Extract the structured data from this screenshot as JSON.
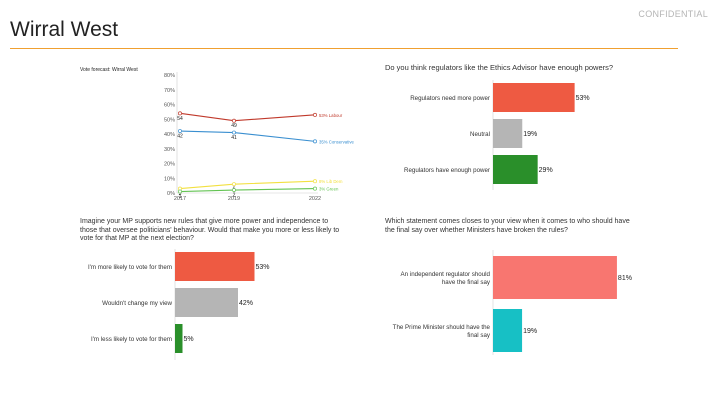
{
  "header": {
    "title": "Wirral West",
    "confidential": "CONFIDENTIAL",
    "accent": "#f0a030"
  },
  "chart_data": [
    {
      "type": "line",
      "title": "Vote forecast: Wirral West",
      "x": [
        2017,
        2019,
        2022
      ],
      "ylim": [
        0,
        80
      ],
      "yticks": [
        "0%",
        "10%",
        "20%",
        "30%",
        "40%",
        "50%",
        "60%",
        "70%",
        "80%"
      ],
      "grid": false,
      "series": [
        {
          "name": "53% Labour",
          "color": "#c0392b",
          "values": [
            54,
            49,
            53
          ],
          "point_labels": [
            "54",
            "49",
            ""
          ]
        },
        {
          "name": "35% Conservative",
          "color": "#3a8fd0",
          "values": [
            42,
            41,
            35
          ],
          "point_labels": [
            "42",
            "41",
            ""
          ]
        },
        {
          "name": "8% Lib Dem",
          "color": "#f2e040",
          "values": [
            3,
            6,
            8
          ],
          "point_labels": [
            "3",
            "6",
            ""
          ]
        },
        {
          "name": "3% Green",
          "color": "#63c353",
          "values": [
            1,
            2,
            3
          ],
          "point_labels": [
            "1",
            "2",
            ""
          ]
        }
      ]
    },
    {
      "type": "bar",
      "orientation": "horizontal",
      "title": "Do you think regulators like the Ethics Advisor have enough powers?",
      "categories": [
        "Regulators need more power",
        "Neutral",
        "Regulators have enough power"
      ],
      "values": [
        53,
        19,
        29
      ],
      "labels": [
        "53%",
        "19%",
        "29%"
      ],
      "colors": [
        "#ee5a42",
        "#b5b5b5",
        "#2a8f2a"
      ]
    },
    {
      "type": "bar",
      "orientation": "horizontal",
      "title": "Imagine your MP supports new rules that give more power and independence to those that oversee politicians' behaviour. Would that make you more or less likely to vote for that MP at the next election?",
      "categories": [
        "I'm more likely to vote for them",
        "Wouldn't change my view",
        "I'm less likely to vote for them"
      ],
      "values": [
        53,
        42,
        5
      ],
      "labels": [
        "53%",
        "42%",
        "5%"
      ],
      "colors": [
        "#ee5a42",
        "#b5b5b5",
        "#2a8f2a"
      ]
    },
    {
      "type": "bar",
      "orientation": "horizontal",
      "title": "Which statement comes closes to your view when it comes to who should have the final say over whether Ministers have broken the rules?",
      "categories": [
        "An independent regulator should have the final say",
        "The Prime Minister should have the final say"
      ],
      "values": [
        81,
        19
      ],
      "labels": [
        "81%",
        "19%"
      ],
      "colors": [
        "#f87670",
        "#17c0c5"
      ]
    }
  ]
}
